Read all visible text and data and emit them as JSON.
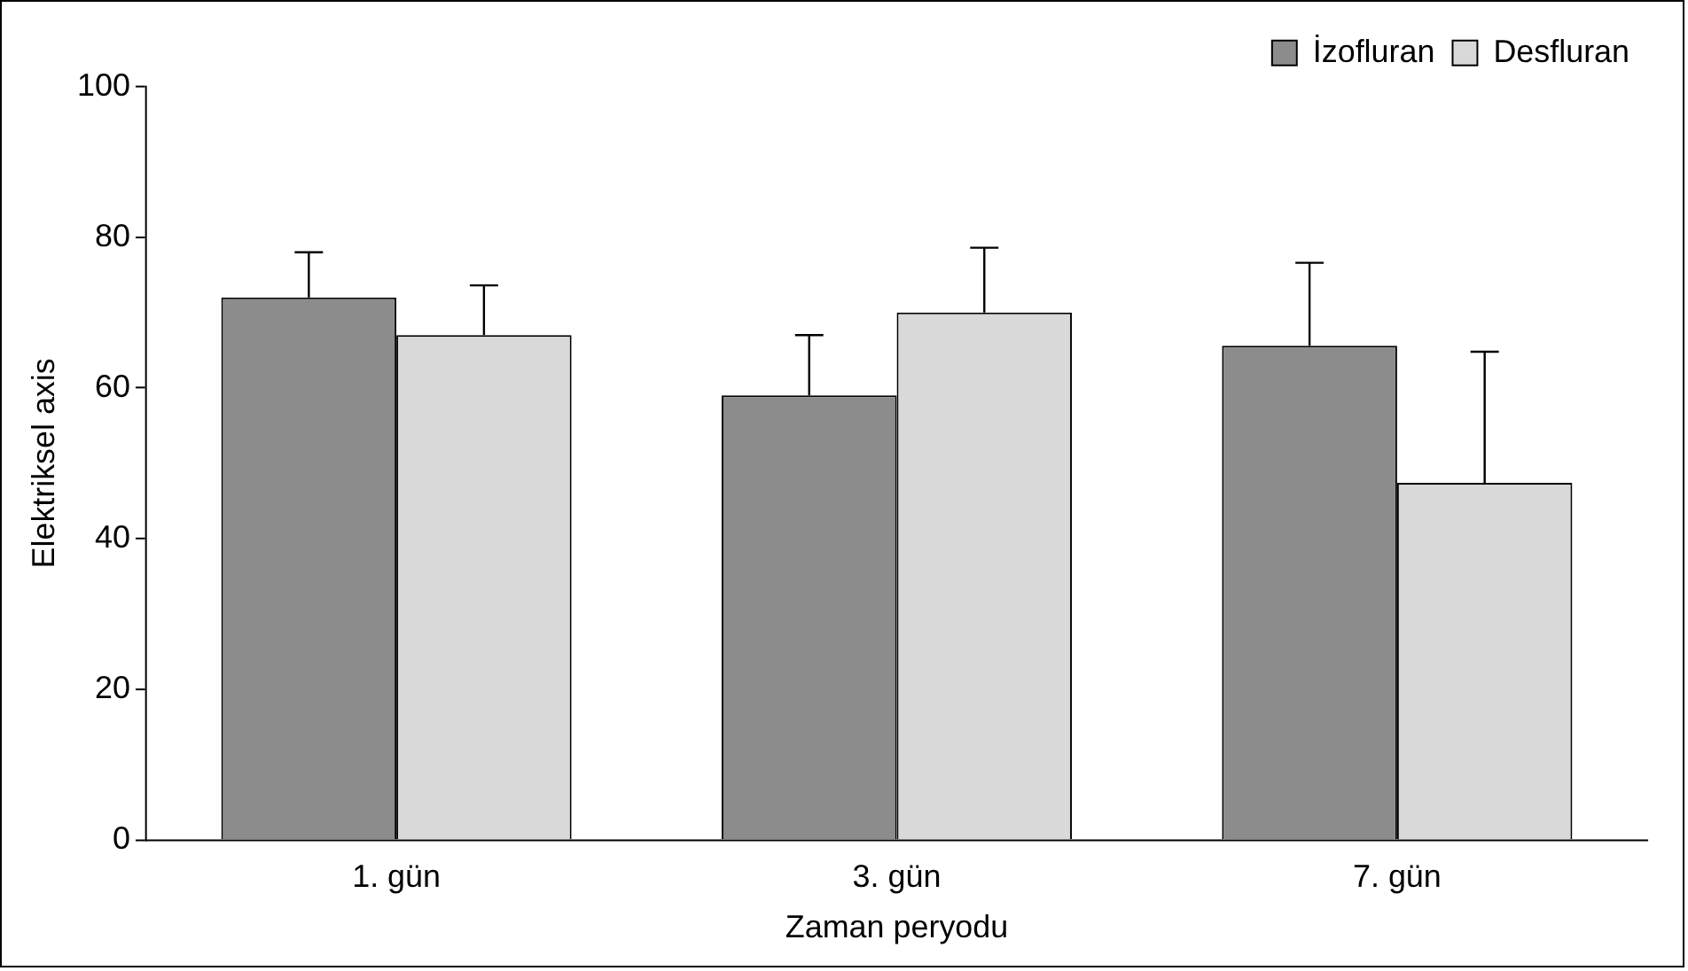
{
  "chart_data": {
    "type": "bar",
    "xlabel": "Zaman peryodu",
    "ylabel": "Elektriksel axis",
    "categories": [
      "1. gün",
      "3. gün",
      "7. gün"
    ],
    "series": [
      {
        "name": "İzofluran",
        "color": "#8c8c8c",
        "values": [
          72,
          59,
          65.6
        ],
        "errors": [
          [
            72,
            78
          ],
          [
            59,
            67
          ],
          [
            65.6,
            76.6
          ]
        ]
      },
      {
        "name": "Desfluran",
        "color": "#d9d9d9",
        "values": [
          67,
          70,
          47.4
        ],
        "errors": [
          [
            67,
            73.6
          ],
          [
            70,
            78.6
          ],
          [
            47.4,
            64.8
          ]
        ]
      }
    ],
    "ylim": [
      0,
      100
    ],
    "yticks": [
      0,
      20,
      40,
      60,
      80,
      100
    ],
    "grid": false,
    "legend": "top right"
  }
}
